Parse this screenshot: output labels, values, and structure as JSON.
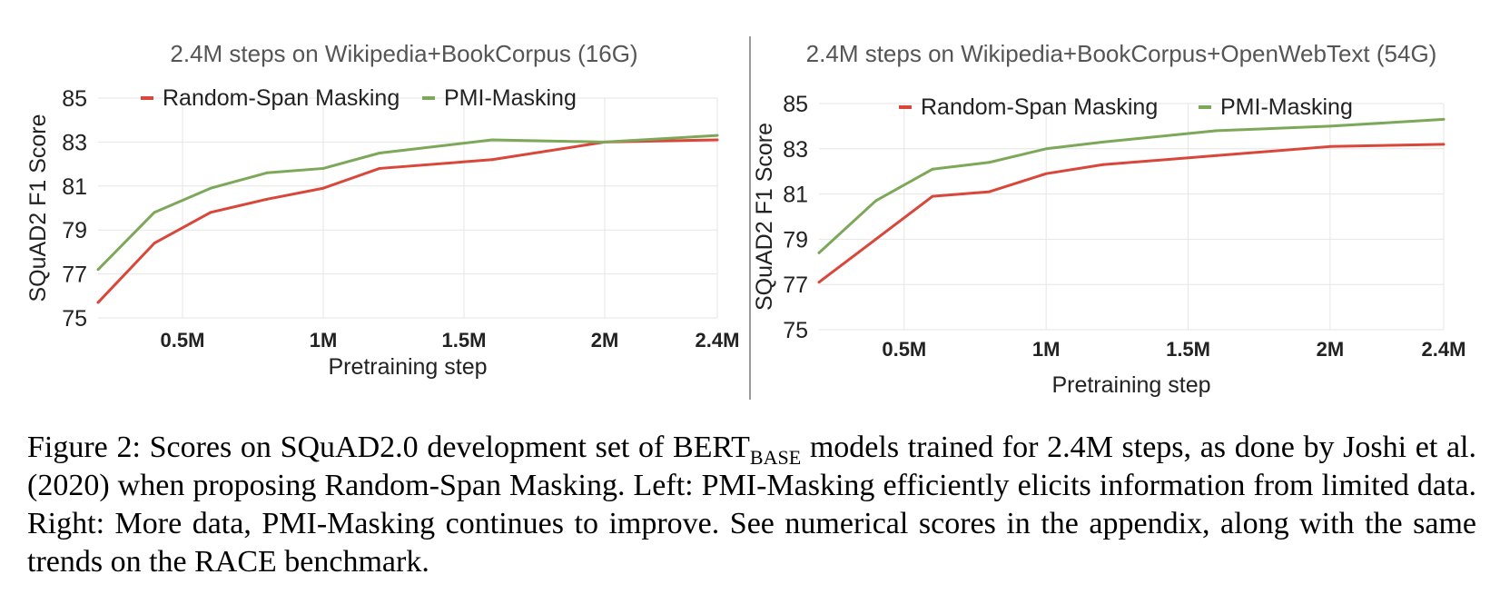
{
  "chart_data": [
    {
      "type": "line",
      "title": "2.4M steps on Wikipedia+BookCorpus (16G)",
      "xlabel": "Pretraining step",
      "ylabel": "SQuAD2 F1 Score",
      "ylim": [
        75,
        85
      ],
      "yticks": [
        75,
        77,
        79,
        81,
        83,
        85
      ],
      "xlim": [
        0.2,
        2.4
      ],
      "xticks": [
        0.5,
        1.0,
        1.5,
        2.0,
        2.4
      ],
      "xtick_labels": [
        "0.5M",
        "1M",
        "1.5M",
        "2M",
        "2.4M"
      ],
      "grid": true,
      "legend": "top",
      "series": [
        {
          "name": "Random-Span Masking",
          "color": "#d9473b",
          "x": [
            0.2,
            0.4,
            0.6,
            0.8,
            1.0,
            1.2,
            1.6,
            2.0,
            2.4
          ],
          "y": [
            75.7,
            78.4,
            79.8,
            80.4,
            80.9,
            81.8,
            82.2,
            83.0,
            83.1
          ]
        },
        {
          "name": "PMI-Masking",
          "color": "#7da85a",
          "x": [
            0.2,
            0.4,
            0.6,
            0.8,
            1.0,
            1.2,
            1.6,
            2.0,
            2.4
          ],
          "y": [
            77.2,
            79.8,
            80.9,
            81.6,
            81.8,
            82.5,
            83.1,
            83.0,
            83.3
          ]
        }
      ]
    },
    {
      "type": "line",
      "title": "2.4M steps on Wikipedia+BookCorpus+OpenWebText (54G)",
      "xlabel": "Pretraining step",
      "ylabel": "SQuAD2 F1 Score",
      "ylim": [
        75,
        85
      ],
      "yticks": [
        75,
        77,
        79,
        81,
        83,
        85
      ],
      "xlim": [
        0.2,
        2.4
      ],
      "xticks": [
        0.5,
        1.0,
        1.5,
        2.0,
        2.4
      ],
      "xtick_labels": [
        "0.5M",
        "1M",
        "1.5M",
        "2M",
        "2.4M"
      ],
      "grid": true,
      "legend": "top",
      "series": [
        {
          "name": "Random-Span Masking",
          "color": "#d9473b",
          "x": [
            0.2,
            0.4,
            0.6,
            0.8,
            1.0,
            1.2,
            1.6,
            2.0,
            2.4
          ],
          "y": [
            77.1,
            79.0,
            80.9,
            81.1,
            81.9,
            82.3,
            82.7,
            83.1,
            83.2
          ]
        },
        {
          "name": "PMI-Masking",
          "color": "#7da85a",
          "x": [
            0.2,
            0.4,
            0.6,
            0.8,
            1.0,
            1.2,
            1.6,
            2.0,
            2.4
          ],
          "y": [
            78.4,
            80.7,
            82.1,
            82.4,
            83.0,
            83.3,
            83.8,
            84.0,
            84.3
          ]
        }
      ]
    }
  ],
  "caption": {
    "prefix": "Figure 2: Scores on SQuAD2.0 development set of BERT",
    "sub": "BASE",
    "suffix": " models trained for 2.4M steps, as done by Joshi et al. (2020) when proposing Random-Span Masking. Left: PMI-Masking efficiently elicits information from limited data. Right: More data, PMI-Masking continues to improve. See numerical scores in the appendix, along with the same trends on the RACE benchmark."
  }
}
